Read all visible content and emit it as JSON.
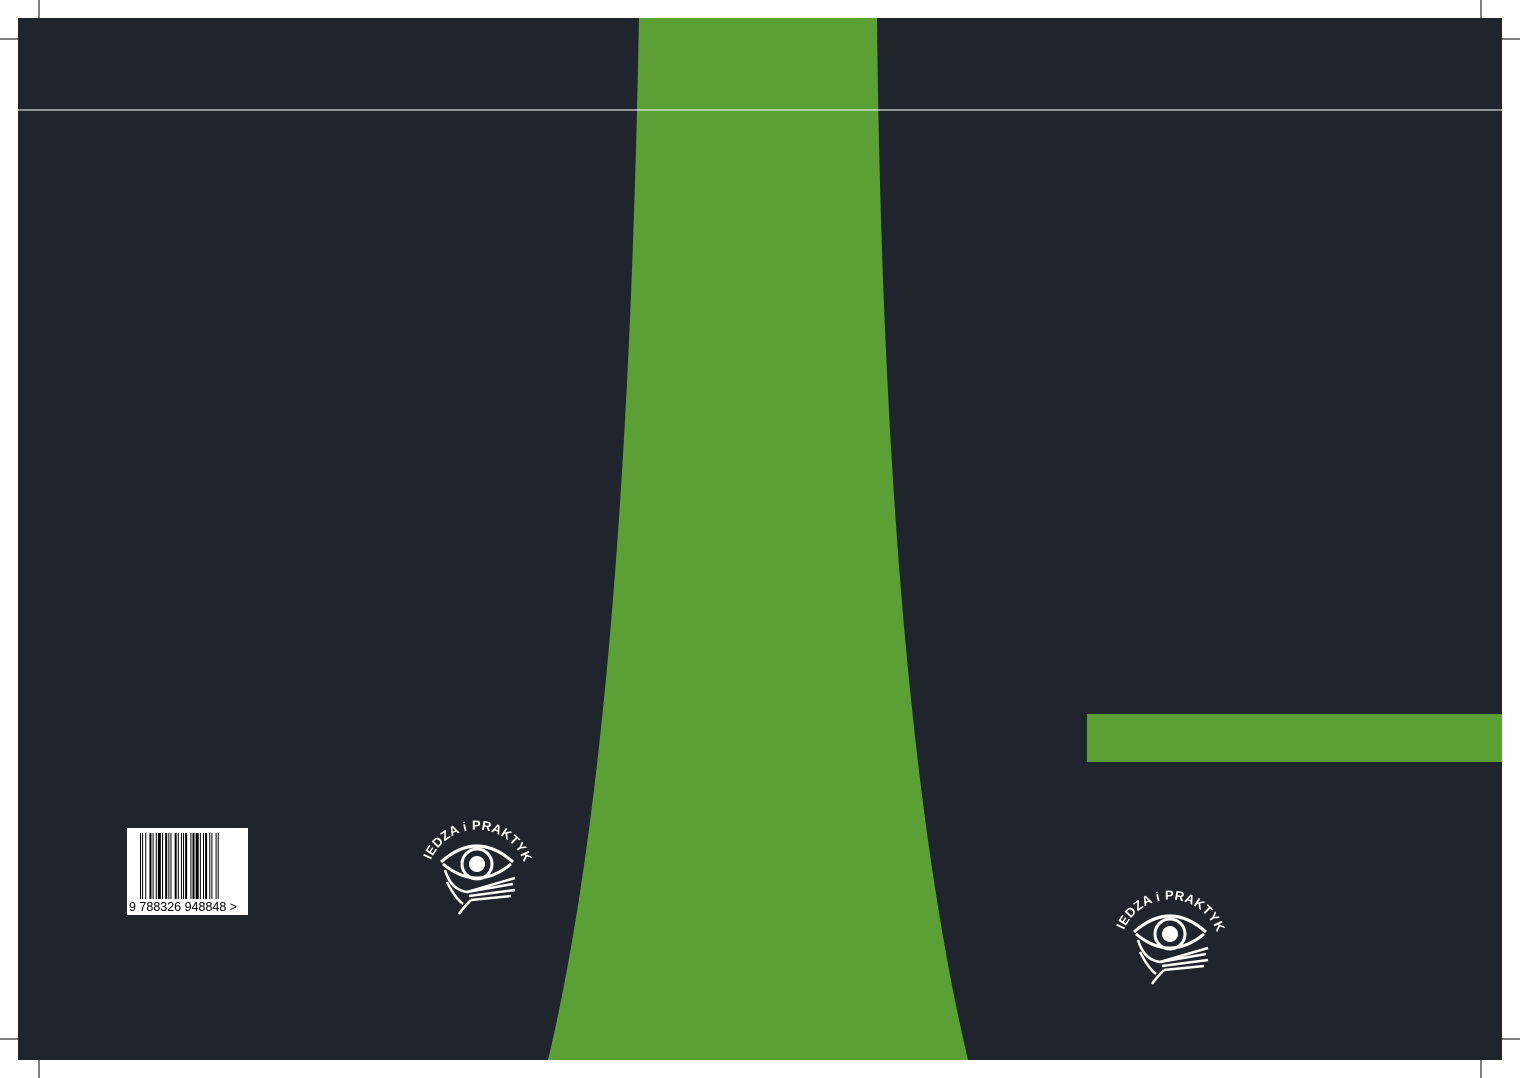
{
  "colors": {
    "background": "#1f242d",
    "accent": "#5aa035",
    "paper": "#ffffff"
  },
  "barcode": {
    "digits": "9 788326 948848 >",
    "isbn": "9788326948848"
  },
  "back_logo": {
    "text": "WIEDZA i PRAKTYKA",
    "icon": "eye-hand-logo-icon"
  },
  "front_logo": {
    "text": "WIEDZA i PRAKTYKA",
    "icon": "eye-hand-logo-icon"
  }
}
